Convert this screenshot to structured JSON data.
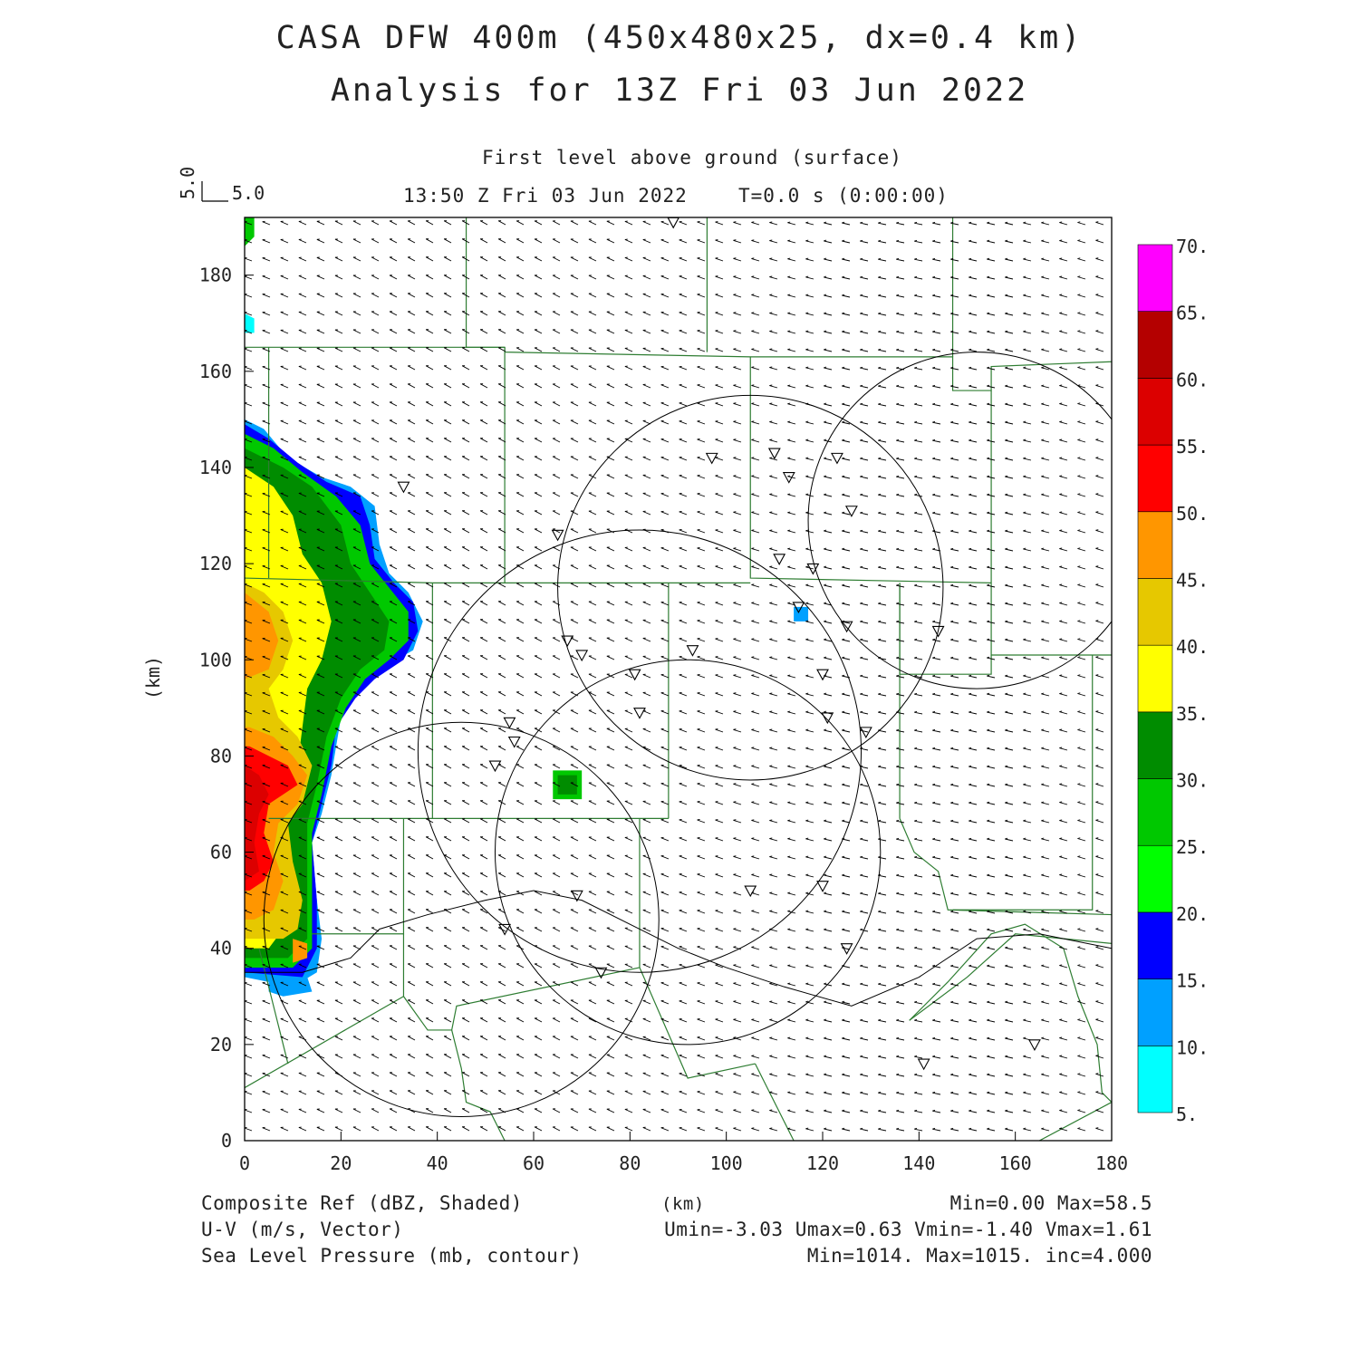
{
  "header": {
    "title_line1": "CASA DFW 400m (450x480x25, dx=0.4 km)",
    "title_line2": "Analysis for 13Z Fri 03 Jun 2022",
    "level": "First level above ground (surface)",
    "valid_time": "13:50 Z Fri 03 Jun 2022",
    "forecast_time": "T=0.0 s (0:00:00)",
    "vector_key_x": "5.0",
    "vector_key_y": "5.0"
  },
  "axes": {
    "x_label": "(km)",
    "y_label": "(km)",
    "x_ticks": [
      "0",
      "20",
      "40",
      "60",
      "80",
      "100",
      "120",
      "140",
      "160",
      "180"
    ],
    "y_ticks": [
      "0",
      "20",
      "40",
      "60",
      "80",
      "100",
      "120",
      "140",
      "160",
      "180"
    ],
    "x_range": [
      0,
      180
    ],
    "y_range": [
      0,
      192
    ]
  },
  "colorbar": {
    "labels": [
      "5.",
      "10.",
      "15.",
      "20.",
      "25.",
      "30.",
      "35.",
      "40.",
      "45.",
      "50.",
      "55.",
      "60.",
      "65.",
      "70."
    ],
    "colors": [
      "#00ffff",
      "#00a0ff",
      "#0000ff",
      "#00ff00",
      "#00c800",
      "#008c00",
      "#ffff00",
      "#e6c800",
      "#ff9600",
      "#ff0000",
      "#dc0000",
      "#b40000",
      "#ff00ff"
    ]
  },
  "footer": {
    "field1": "Composite Ref (dBZ, Shaded)",
    "field1_stats": "Min=0.00 Max=58.5",
    "field2": "U-V (m/s, Vector)",
    "field2_stats": "Umin=-3.03 Umax=0.63 Vmin=-1.40 Vmax=1.61",
    "field3": "Sea Level Pressure (mb, contour)",
    "field3_stats": "Min=1014. Max=1015. inc=4.000",
    "center_unit": "(km)"
  },
  "map_colors": {
    "county_lines": "#2e7d32",
    "range_rings": "#000000",
    "frame": "#000000"
  },
  "radar_rings": [
    {
      "cx_km": 105,
      "cy_km": 115,
      "r_km": 40
    },
    {
      "cx_km": 152,
      "cy_km": 129,
      "r_km": 35
    },
    {
      "cx_km": 82,
      "cy_km": 81,
      "r_km": 46
    },
    {
      "cx_km": 92,
      "cy_km": 60,
      "r_km": 40
    },
    {
      "cx_km": 45,
      "cy_km": 46,
      "r_km": 41
    }
  ],
  "stations_km": [
    [
      89,
      191
    ],
    [
      33,
      136
    ],
    [
      65,
      126
    ],
    [
      97,
      142
    ],
    [
      110,
      143
    ],
    [
      123,
      142
    ],
    [
      113,
      138
    ],
    [
      126,
      131
    ],
    [
      111,
      121
    ],
    [
      118,
      119
    ],
    [
      115,
      111
    ],
    [
      125,
      107
    ],
    [
      67,
      104
    ],
    [
      70,
      101
    ],
    [
      93,
      102
    ],
    [
      81,
      97
    ],
    [
      120,
      97
    ],
    [
      82,
      89
    ],
    [
      121,
      88
    ],
    [
      129,
      85
    ],
    [
      55,
      87
    ],
    [
      56,
      83
    ],
    [
      52,
      78
    ],
    [
      69,
      51
    ],
    [
      105,
      52
    ],
    [
      120,
      53
    ],
    [
      54,
      44
    ],
    [
      125,
      40
    ],
    [
      74,
      35
    ],
    [
      144,
      106
    ],
    [
      141,
      16
    ],
    [
      164,
      20
    ]
  ]
}
